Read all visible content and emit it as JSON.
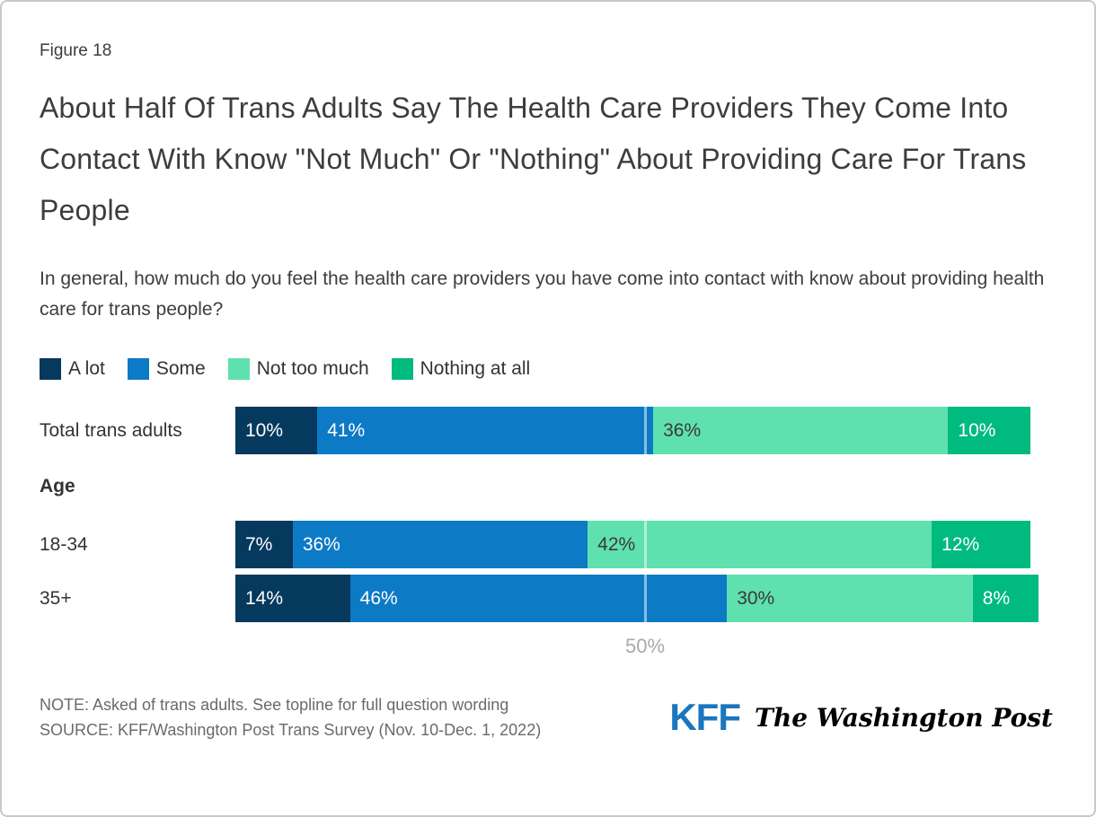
{
  "figure": {
    "label": "Figure 18",
    "title": "About Half Of Trans Adults Say The Health Care Providers They Come Into Contact With Know \"Not Much\" Or \"Nothing\" About Providing Care For Trans People",
    "subtitle": "In general, how much do you feel the health care providers you have come into contact with know about providing health care for trans people?"
  },
  "chart_data": {
    "type": "stacked_bar_horizontal",
    "categories": [
      "A lot",
      "Some",
      "Not too much",
      "Nothing at all"
    ],
    "colors": [
      "#05395d",
      "#0d7ac6",
      "#5fe0af",
      "#00ba7f"
    ],
    "label_colors": [
      "#ffffff",
      "#ffffff",
      "#3a3a3a",
      "#ffffff"
    ],
    "rows": [
      {
        "label": "Total trans adults",
        "values": [
          10,
          41,
          36,
          10
        ]
      },
      {
        "label": "18-34",
        "section": "Age",
        "values": [
          7,
          36,
          42,
          12
        ]
      },
      {
        "label": "35+",
        "values": [
          14,
          46,
          30,
          8
        ]
      }
    ],
    "axis": {
      "tick": "50%",
      "tick_value": 50,
      "max": 100,
      "gridline": true
    },
    "value_suffix": "%"
  },
  "footer": {
    "note": "NOTE: Asked of trans adults. See topline for full question wording",
    "source": "SOURCE: KFF/Washington Post Trans Survey (Nov. 10-Dec. 1, 2022)",
    "kff_logo": "KFF",
    "wapo_logo": "The Washington Post"
  }
}
